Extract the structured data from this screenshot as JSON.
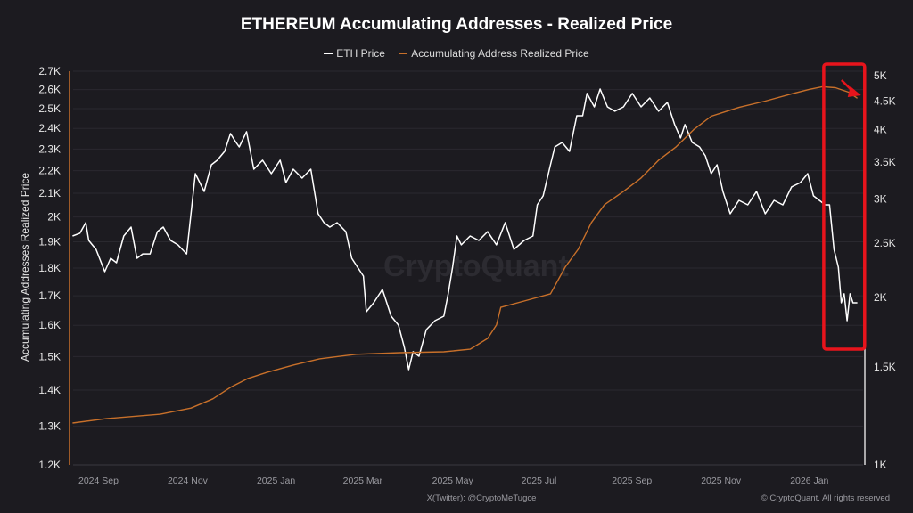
{
  "chart_data": {
    "type": "line",
    "title": "ETHEREUM Accumulating Addresses - Realized Price",
    "ylabel_left": "Accumulating Addresses Realized Price",
    "y_left": {
      "scale": "log",
      "range": [
        1200,
        2700
      ],
      "ticks": [
        "1.2K",
        "1.3K",
        "1.4K",
        "1.5K",
        "1.6K",
        "1.7K",
        "1.8K",
        "1.9K",
        "2K",
        "2.1K",
        "2.2K",
        "2.3K",
        "2.4K",
        "2.5K",
        "2.6K",
        "2.7K"
      ],
      "tick_values": [
        1200,
        1300,
        1400,
        1500,
        1600,
        1700,
        1800,
        1900,
        2000,
        2100,
        2200,
        2300,
        2400,
        2500,
        2600,
        2700
      ]
    },
    "y_right": {
      "scale": "log",
      "range": [
        1000,
        5000
      ],
      "ticks": [
        "1K",
        "1.5K",
        "2K",
        "2.5K",
        "3K",
        "3.5K",
        "4K",
        "4.5K",
        "5K"
      ],
      "tick_values": [
        1000,
        1500,
        2000,
        2500,
        3000,
        3500,
        4000,
        4500,
        5000
      ]
    },
    "x_ticks": [
      {
        "label": "2024 Sep",
        "date": "2024-09-01"
      },
      {
        "label": "2024 Nov",
        "date": "2024-11-01"
      },
      {
        "label": "2025 Jan",
        "date": "2025-01-01"
      },
      {
        "label": "2025 Mar",
        "date": "2025-03-01"
      },
      {
        "label": "2025 May",
        "date": "2025-05-01"
      },
      {
        "label": "2025 Jul",
        "date": "2025-07-01"
      },
      {
        "label": "2025 Sep",
        "date": "2025-09-01"
      },
      {
        "label": "2025 Nov",
        "date": "2025-11-01"
      },
      {
        "label": "2026 Jan",
        "date": "2026-01-01"
      }
    ],
    "grid": true,
    "legend_position": "top",
    "series": [
      {
        "name": "ETH Price",
        "axis": "right",
        "color": "#ffffff",
        "points": [
          [
            "2024-08-28",
            2577
          ],
          [
            "2024-09-02",
            2606
          ],
          [
            "2024-09-06",
            2723
          ],
          [
            "2024-09-08",
            2530
          ],
          [
            "2024-09-13",
            2438
          ],
          [
            "2024-09-19",
            2224
          ],
          [
            "2024-09-23",
            2350
          ],
          [
            "2024-09-27",
            2307
          ],
          [
            "2024-10-02",
            2577
          ],
          [
            "2024-10-07",
            2673
          ],
          [
            "2024-10-11",
            2350
          ],
          [
            "2024-10-15",
            2393
          ],
          [
            "2024-10-20",
            2393
          ],
          [
            "2024-10-25",
            2624
          ],
          [
            "2024-10-29",
            2673
          ],
          [
            "2024-11-03",
            2530
          ],
          [
            "2024-11-08",
            2484
          ],
          [
            "2024-11-14",
            2393
          ],
          [
            "2024-11-17",
            2825
          ],
          [
            "2024-11-20",
            3335
          ],
          [
            "2024-11-26",
            3098
          ],
          [
            "2024-12-01",
            3460
          ],
          [
            "2024-12-05",
            3525
          ],
          [
            "2024-12-10",
            3656
          ],
          [
            "2024-12-14",
            3936
          ],
          [
            "2024-12-17",
            3822
          ],
          [
            "2024-12-20",
            3724
          ],
          [
            "2024-12-25",
            3966
          ],
          [
            "2024-12-30",
            3397
          ],
          [
            "2025-01-05",
            3525
          ],
          [
            "2025-01-11",
            3335
          ],
          [
            "2025-01-17",
            3525
          ],
          [
            "2025-01-21",
            3214
          ],
          [
            "2025-01-26",
            3397
          ],
          [
            "2025-02-01",
            3274
          ],
          [
            "2025-02-07",
            3397
          ],
          [
            "2025-02-12",
            2825
          ],
          [
            "2025-02-16",
            2723
          ],
          [
            "2025-02-20",
            2673
          ],
          [
            "2025-02-25",
            2723
          ],
          [
            "2025-03-03",
            2624
          ],
          [
            "2025-03-07",
            2350
          ],
          [
            "2025-03-11",
            2265
          ],
          [
            "2025-03-15",
            2183
          ],
          [
            "2025-03-17",
            1884
          ],
          [
            "2025-03-22",
            1955
          ],
          [
            "2025-03-28",
            2066
          ],
          [
            "2025-04-03",
            1850
          ],
          [
            "2025-04-08",
            1783
          ],
          [
            "2025-04-12",
            1626
          ],
          [
            "2025-04-15",
            1483
          ],
          [
            "2025-04-18",
            1597
          ],
          [
            "2025-04-22",
            1567
          ],
          [
            "2025-04-27",
            1750
          ],
          [
            "2025-05-03",
            1816
          ],
          [
            "2025-05-09",
            1850
          ],
          [
            "2025-05-12",
            2029
          ],
          [
            "2025-05-15",
            2265
          ],
          [
            "2025-05-18",
            2577
          ],
          [
            "2025-05-21",
            2484
          ],
          [
            "2025-05-27",
            2577
          ],
          [
            "2025-06-02",
            2530
          ],
          [
            "2025-06-08",
            2624
          ],
          [
            "2025-06-14",
            2484
          ],
          [
            "2025-06-20",
            2723
          ],
          [
            "2025-06-26",
            2438
          ],
          [
            "2025-07-03",
            2530
          ],
          [
            "2025-07-09",
            2577
          ],
          [
            "2025-07-12",
            2931
          ],
          [
            "2025-07-16",
            3042
          ],
          [
            "2025-07-21",
            3460
          ],
          [
            "2025-07-24",
            3724
          ],
          [
            "2025-07-29",
            3793
          ],
          [
            "2025-08-03",
            3656
          ],
          [
            "2025-08-08",
            4237
          ],
          [
            "2025-08-12",
            4237
          ],
          [
            "2025-08-15",
            4646
          ],
          [
            "2025-08-20",
            4396
          ],
          [
            "2025-08-24",
            4731
          ],
          [
            "2025-08-29",
            4396
          ],
          [
            "2025-09-03",
            4316
          ],
          [
            "2025-09-09",
            4396
          ],
          [
            "2025-09-15",
            4646
          ],
          [
            "2025-09-21",
            4396
          ],
          [
            "2025-09-27",
            4560
          ],
          [
            "2025-10-03",
            4316
          ],
          [
            "2025-10-09",
            4477
          ],
          [
            "2025-10-14",
            4084
          ],
          [
            "2025-10-18",
            3865
          ],
          [
            "2025-10-21",
            4084
          ],
          [
            "2025-10-26",
            3793
          ],
          [
            "2025-10-31",
            3724
          ],
          [
            "2025-11-04",
            3590
          ],
          [
            "2025-11-08",
            3335
          ],
          [
            "2025-11-12",
            3460
          ],
          [
            "2025-11-16",
            3098
          ],
          [
            "2025-11-21",
            2825
          ],
          [
            "2025-11-27",
            2986
          ],
          [
            "2025-12-03",
            2931
          ],
          [
            "2025-12-09",
            3098
          ],
          [
            "2025-12-15",
            2825
          ],
          [
            "2025-12-21",
            2986
          ],
          [
            "2025-12-27",
            2931
          ],
          [
            "2026-01-02",
            3156
          ],
          [
            "2026-01-08",
            3214
          ],
          [
            "2026-01-13",
            3335
          ],
          [
            "2026-01-17",
            3042
          ],
          [
            "2026-01-21",
            2986
          ],
          [
            "2026-01-25",
            2931
          ],
          [
            "2026-01-28",
            2931
          ],
          [
            "2026-01-31",
            2438
          ],
          [
            "2026-02-03",
            2265
          ],
          [
            "2026-02-05",
            1955
          ],
          [
            "2026-02-07",
            2029
          ],
          [
            "2026-02-09",
            1816
          ],
          [
            "2026-02-11",
            2029
          ],
          [
            "2026-02-13",
            1955
          ],
          [
            "2026-02-16",
            1955
          ]
        ]
      },
      {
        "name": "Accumulating Address Realized Price",
        "axis": "left",
        "color": "#c8702a",
        "points": [
          [
            "2024-08-28",
            1308
          ],
          [
            "2024-09-20",
            1320
          ],
          [
            "2024-10-27",
            1332
          ],
          [
            "2024-11-17",
            1349
          ],
          [
            "2024-12-02",
            1375
          ],
          [
            "2024-12-14",
            1408
          ],
          [
            "2024-12-26",
            1434
          ],
          [
            "2025-01-08",
            1452
          ],
          [
            "2025-01-26",
            1474
          ],
          [
            "2025-02-13",
            1493
          ],
          [
            "2025-03-10",
            1507
          ],
          [
            "2025-04-09",
            1512
          ],
          [
            "2025-05-09",
            1515
          ],
          [
            "2025-05-27",
            1523
          ],
          [
            "2025-06-08",
            1557
          ],
          [
            "2025-06-14",
            1601
          ],
          [
            "2025-06-17",
            1660
          ],
          [
            "2025-07-03",
            1682
          ],
          [
            "2025-07-21",
            1707
          ],
          [
            "2025-07-31",
            1803
          ],
          [
            "2025-08-09",
            1871
          ],
          [
            "2025-08-18",
            1977
          ],
          [
            "2025-08-27",
            2051
          ],
          [
            "2025-09-09",
            2108
          ],
          [
            "2025-09-21",
            2167
          ],
          [
            "2025-10-03",
            2248
          ],
          [
            "2025-10-15",
            2311
          ],
          [
            "2025-10-27",
            2394
          ],
          [
            "2025-11-08",
            2461
          ],
          [
            "2025-11-27",
            2506
          ],
          [
            "2025-12-15",
            2539
          ],
          [
            "2026-01-02",
            2577
          ],
          [
            "2026-01-14",
            2601
          ],
          [
            "2026-01-23",
            2615
          ],
          [
            "2026-02-01",
            2610
          ],
          [
            "2026-02-10",
            2586
          ],
          [
            "2026-02-16",
            2554
          ]
        ]
      }
    ],
    "highlight": {
      "color": "#e8141c",
      "from_date": "2026-01-24",
      "to_date": "2026-02-21"
    },
    "watermark": "CryptoQuant",
    "source_credit": "X(Twitter): @CryptoMeTugce",
    "copyright": "© CryptoQuant. All rights reserved"
  }
}
